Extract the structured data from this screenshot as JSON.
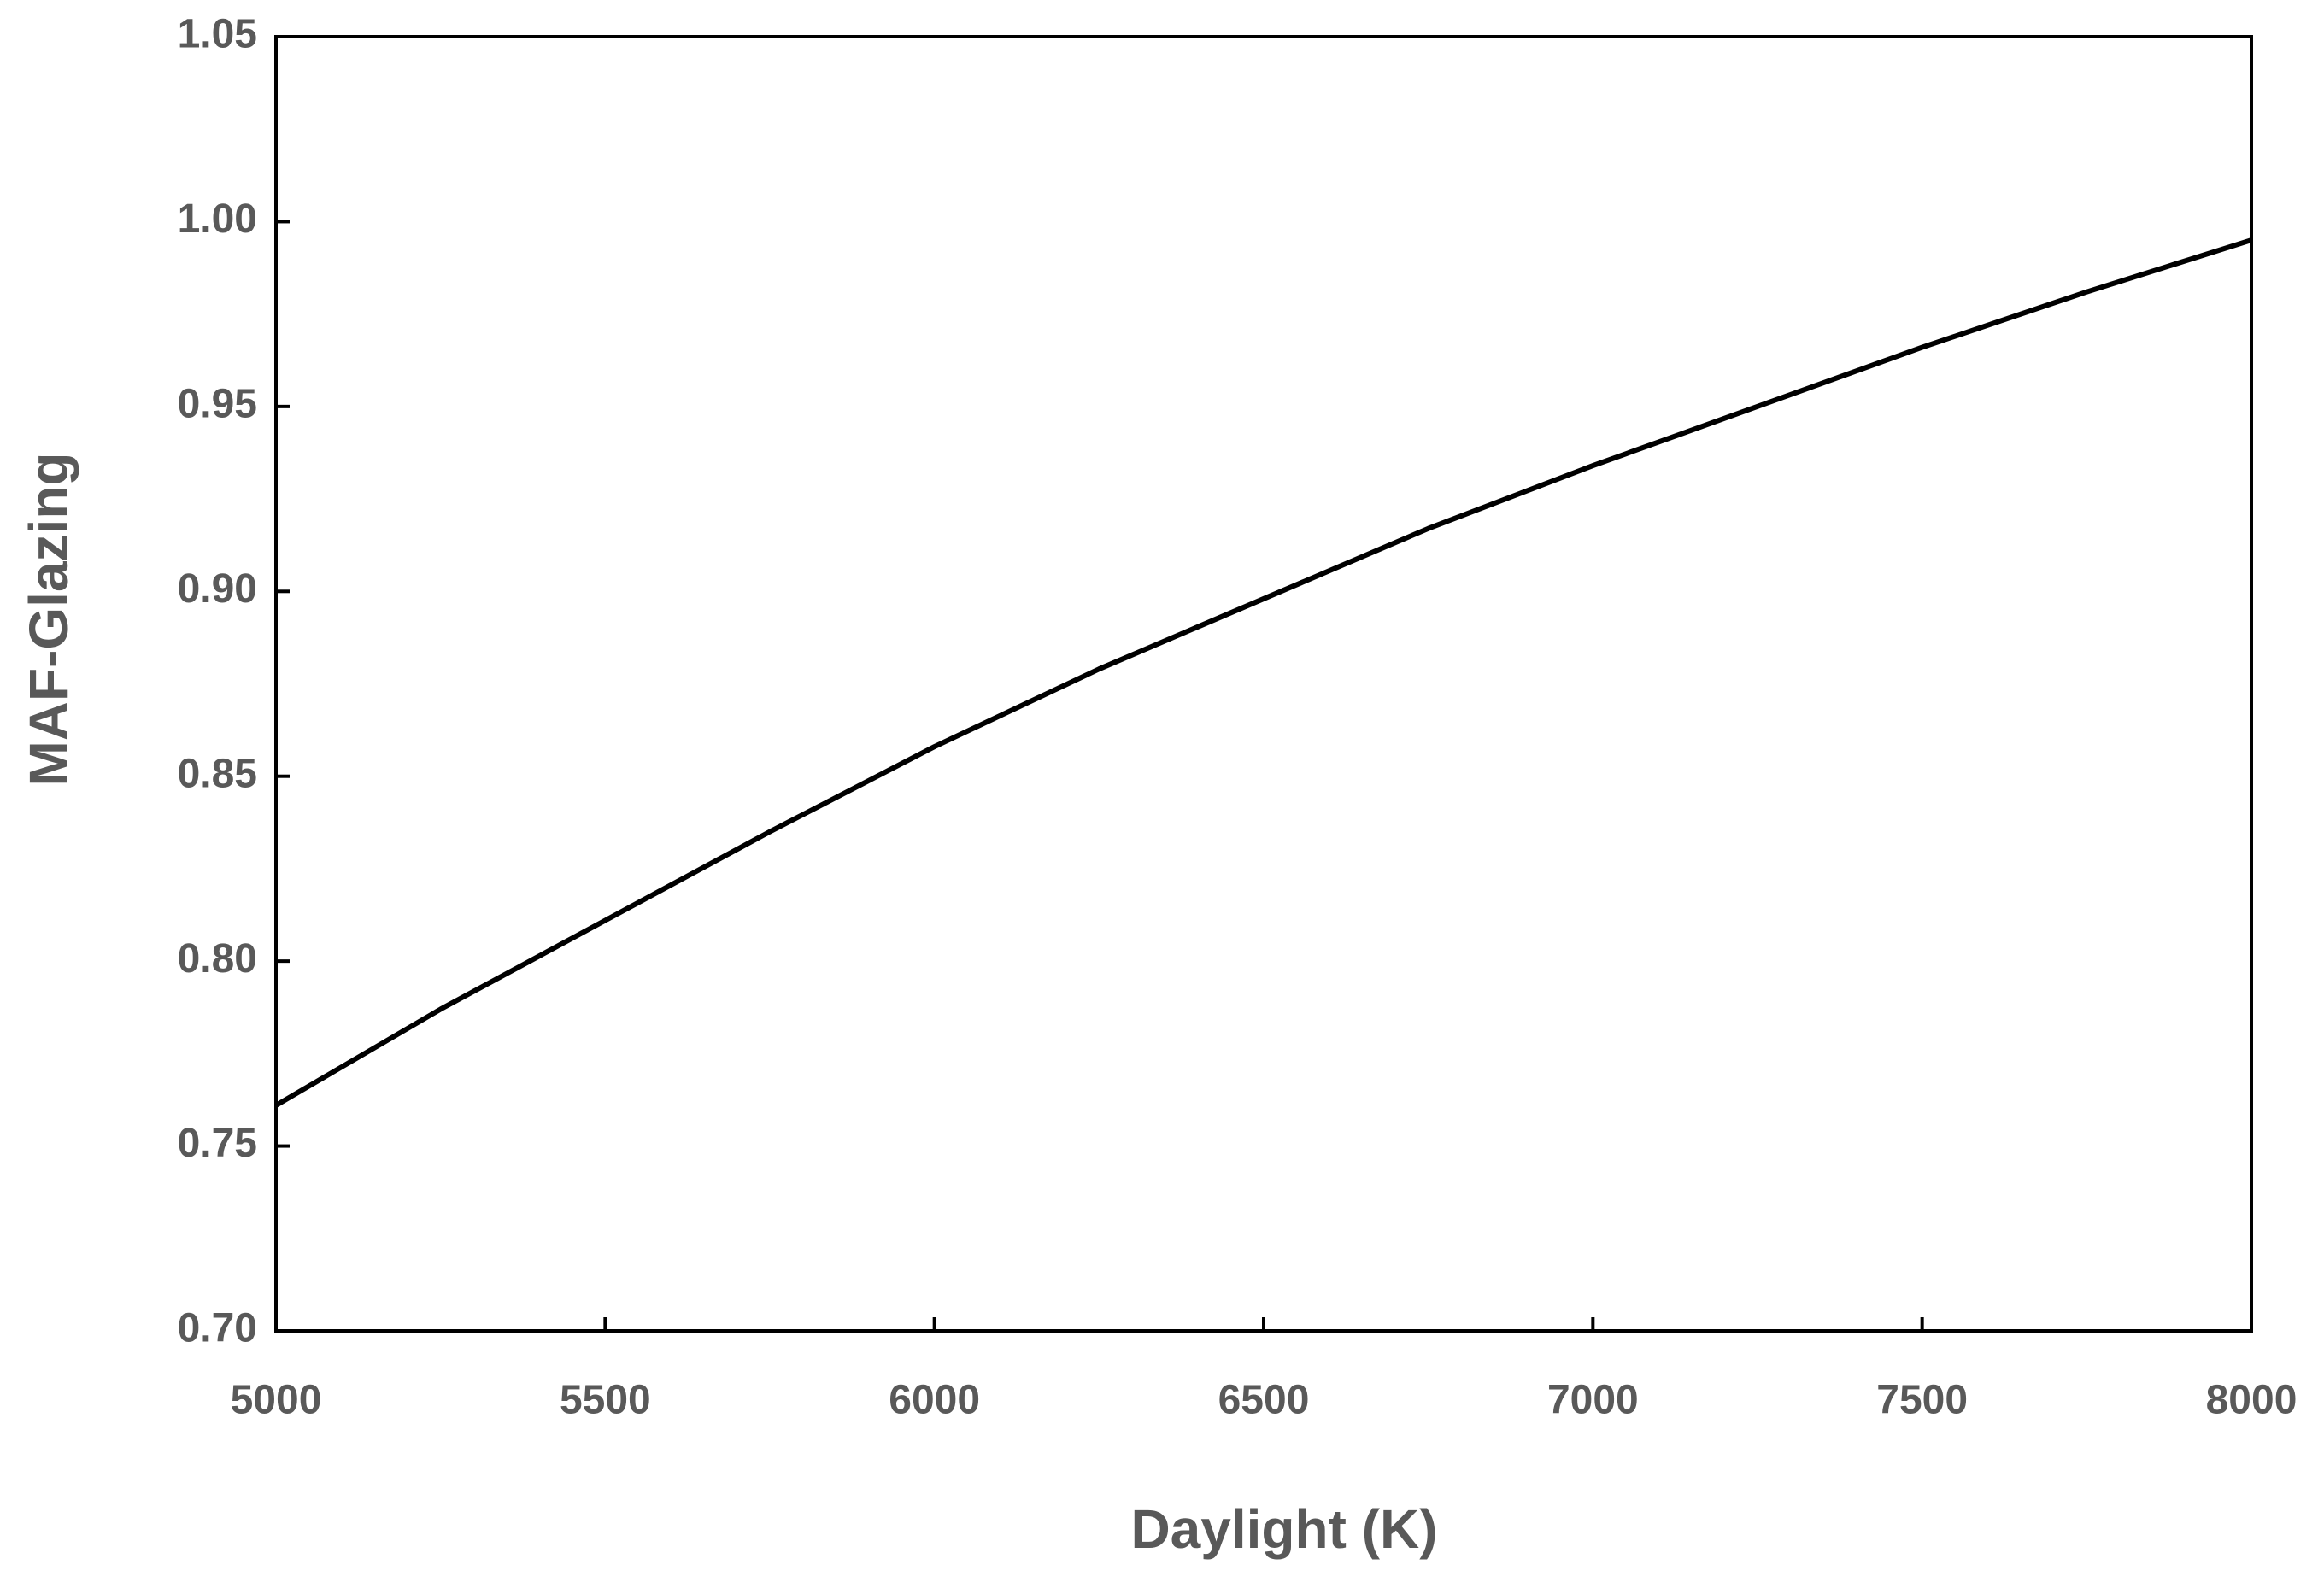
{
  "chart_data": {
    "type": "line",
    "xlabel": "Daylight (K)",
    "ylabel": "MAF-Glazing",
    "x": [
      5000,
      5250,
      5500,
      5750,
      6000,
      6250,
      6500,
      6750,
      7000,
      7250,
      7500,
      7750,
      8000
    ],
    "series": [
      {
        "name": "MAF-Glazing",
        "color": "#000000",
        "values": [
          0.761,
          0.787,
          0.811,
          0.835,
          0.858,
          0.879,
          0.898,
          0.917,
          0.934,
          0.95,
          0.966,
          0.981,
          0.995
        ]
      }
    ],
    "xlim": [
      5000,
      8000
    ],
    "xticks": [
      5000,
      5500,
      6000,
      6500,
      7000,
      7500,
      8000
    ],
    "ylim": [
      0.7,
      1.05
    ],
    "yticks": [
      {
        "value": 0.7,
        "label": "0.70"
      },
      0.75,
      {
        "value": 0.8,
        "label": "0.80"
      },
      0.85,
      {
        "value": 0.9,
        "label": "0.90"
      },
      0.95,
      {
        "value": 1.0,
        "label": "1.00"
      },
      1.05
    ],
    "grid": false
  }
}
